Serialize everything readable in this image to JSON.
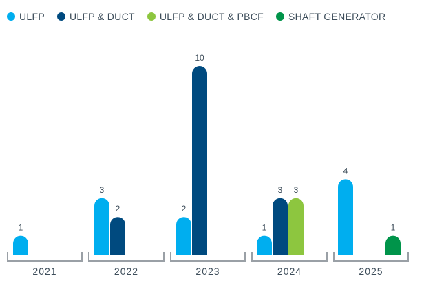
{
  "chart_data": {
    "type": "bar",
    "categories": [
      "2021",
      "2022",
      "2023",
      "2024",
      "2025"
    ],
    "series": [
      {
        "name": "ULFP",
        "color": "#00aeef",
        "values": [
          1,
          3,
          2,
          1,
          4
        ]
      },
      {
        "name": "ULFP & DUCT",
        "color": "#004a7f",
        "values": [
          null,
          2,
          10,
          3,
          null
        ]
      },
      {
        "name": "ULFP & DUCT & PBCF",
        "color": "#8dc63f",
        "values": [
          null,
          null,
          null,
          3,
          null
        ]
      },
      {
        "name": "SHAFT GENERATOR",
        "color": "#00944a",
        "values": [
          null,
          null,
          null,
          null,
          1
        ]
      }
    ],
    "ylim": [
      0,
      10
    ],
    "grid": false,
    "legend_position": "top-left"
  }
}
